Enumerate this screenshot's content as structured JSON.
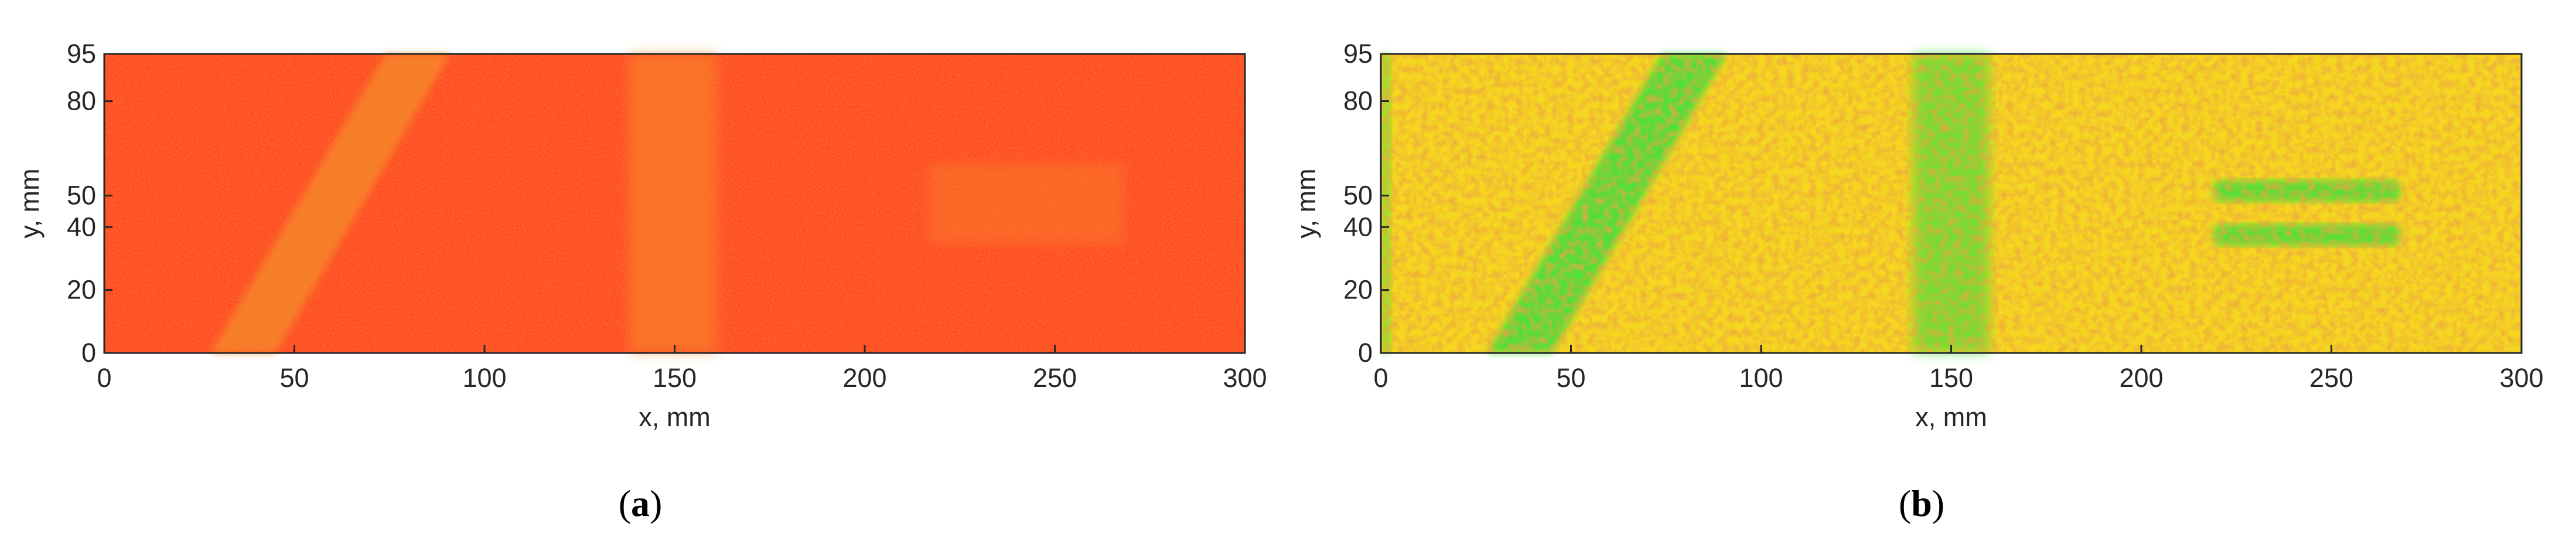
{
  "chart_data": [
    {
      "type": "heatmap",
      "panel_label": "a",
      "xlabel": "x, mm",
      "ylabel": "y, mm",
      "xlim": [
        0,
        300
      ],
      "ylim": [
        0,
        95
      ],
      "xticks": [
        0,
        50,
        100,
        150,
        200,
        250,
        300
      ],
      "yticks": [
        0,
        20,
        40,
        50,
        80,
        95
      ],
      "colormap": {
        "background": "#ff3e15",
        "feature": "#f58c2c"
      },
      "features": [
        {
          "kind": "diagonal-band",
          "x_bottom": [
            28,
            45
          ],
          "x_top": [
            74,
            91
          ]
        },
        {
          "kind": "vertical-band",
          "x": [
            138,
            161
          ]
        },
        {
          "kind": "rectangle",
          "x": [
            217,
            268
          ],
          "y": [
            35,
            60
          ]
        }
      ]
    },
    {
      "type": "heatmap",
      "panel_label": "b",
      "xlabel": "x, mm",
      "ylabel": "y, mm",
      "xlim": [
        0,
        300
      ],
      "ylim": [
        0,
        95
      ],
      "xticks": [
        0,
        50,
        100,
        150,
        200,
        250,
        300
      ],
      "yticks": [
        0,
        20,
        40,
        50,
        80,
        95
      ],
      "colormap": {
        "background": "#f5d71f",
        "speckle": "#e97816",
        "feature": "#3fe03a"
      },
      "features": [
        {
          "kind": "diagonal-band",
          "x_bottom": [
            28,
            45
          ],
          "x_top": [
            74,
            91
          ]
        },
        {
          "kind": "vertical-band",
          "x": [
            140,
            160
          ]
        },
        {
          "kind": "horizontal-band",
          "x": [
            219,
            268
          ],
          "y": [
            34,
            41
          ]
        },
        {
          "kind": "horizontal-band",
          "x": [
            219,
            268
          ],
          "y": [
            48,
            55
          ]
        }
      ]
    }
  ]
}
